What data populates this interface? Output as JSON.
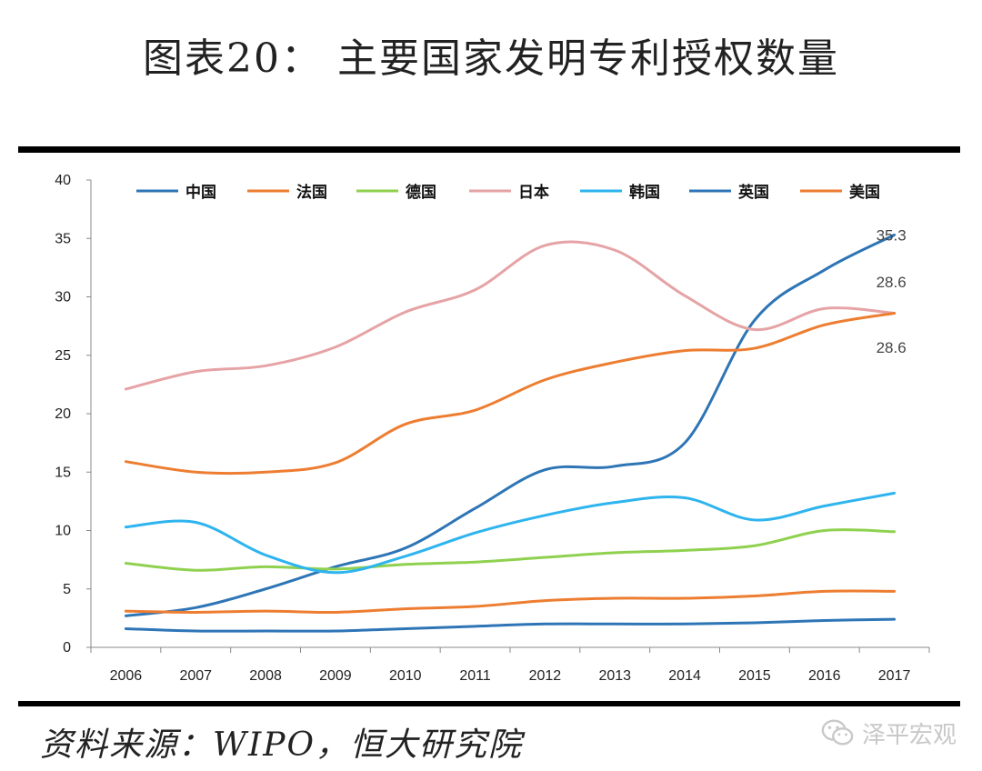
{
  "title": "图表20： 主要国家发明专利授权数量",
  "source": "资料来源：WIPO，恒大研究院",
  "watermark": "泽平宏观",
  "chart_data": {
    "type": "line",
    "x": [
      "2006",
      "2007",
      "2008",
      "2009",
      "2010",
      "2011",
      "2012",
      "2013",
      "2014",
      "2015",
      "2016",
      "2017"
    ],
    "ylim": [
      0,
      40
    ],
    "yticks": [
      0,
      5,
      10,
      15,
      20,
      25,
      30,
      35,
      40
    ],
    "grid": false,
    "legend": "top",
    "series": [
      {
        "name": "中国",
        "color": "#2e75b6",
        "values": [
          2.7,
          3.4,
          5.0,
          6.9,
          8.5,
          11.9,
          15.2,
          15.5,
          17.5,
          28.0,
          32.3,
          35.3
        ]
      },
      {
        "name": "法国",
        "color": "#ed7d31",
        "values": [
          3.1,
          3.0,
          3.1,
          3.0,
          3.3,
          3.5,
          4.0,
          4.2,
          4.2,
          4.4,
          4.8,
          4.8
        ]
      },
      {
        "name": "德国",
        "color": "#8fd14f",
        "values": [
          7.2,
          6.6,
          6.9,
          6.7,
          7.1,
          7.3,
          7.7,
          8.1,
          8.3,
          8.7,
          10.0,
          9.9
        ]
      },
      {
        "name": "日本",
        "color": "#e6a3a6",
        "values": [
          22.1,
          23.6,
          24.1,
          25.7,
          28.7,
          30.6,
          34.4,
          34.0,
          30.1,
          27.2,
          29.0,
          28.6
        ]
      },
      {
        "name": "韩国",
        "color": "#2eb4ee",
        "values": [
          10.3,
          10.7,
          7.9,
          6.4,
          7.8,
          9.8,
          11.3,
          12.4,
          12.8,
          10.9,
          12.1,
          13.2
        ]
      },
      {
        "name": "英国",
        "color": "#2e75b6",
        "values": [
          1.6,
          1.4,
          1.4,
          1.4,
          1.6,
          1.8,
          2.0,
          2.0,
          2.0,
          2.1,
          2.3,
          2.4
        ]
      },
      {
        "name": "美国",
        "color": "#ed7d31",
        "values": [
          15.9,
          15.0,
          15.0,
          15.8,
          19.1,
          20.3,
          22.9,
          24.4,
          25.4,
          25.6,
          27.6,
          28.6
        ]
      }
    ],
    "annotations": [
      {
        "text": "35.3",
        "x": "2017",
        "y": 35.3
      },
      {
        "text": "28.6",
        "x": "2017",
        "y": 31.3
      },
      {
        "text": "28.6",
        "x": "2017",
        "y": 25.7
      }
    ]
  }
}
